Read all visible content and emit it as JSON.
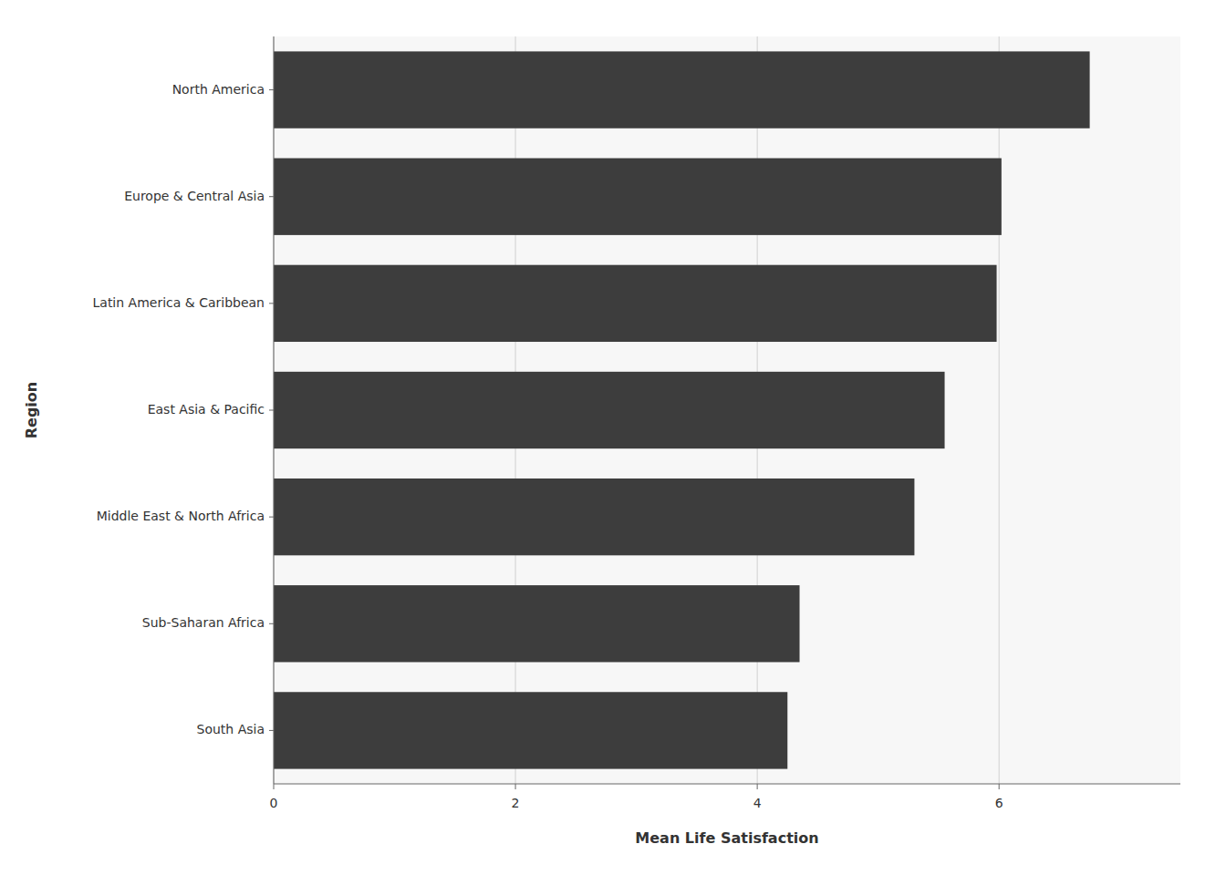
{
  "chart_data": {
    "type": "bar",
    "orientation": "horizontal",
    "xlabel": "Mean Life Satisfaction",
    "ylabel": "Region",
    "categories": [
      "South Asia",
      "Sub-Saharan Africa",
      "Middle East & North Africa",
      "East Asia & Pacific",
      "Latin America & Caribbean",
      "Europe & Central Asia",
      "North America"
    ],
    "values": [
      4.25,
      4.35,
      5.3,
      5.55,
      5.98,
      6.02,
      6.75
    ],
    "color": "#3d3d3d",
    "xlim": [
      0,
      7.5
    ],
    "xticks": [
      0,
      2,
      4,
      6
    ],
    "grid": true
  }
}
